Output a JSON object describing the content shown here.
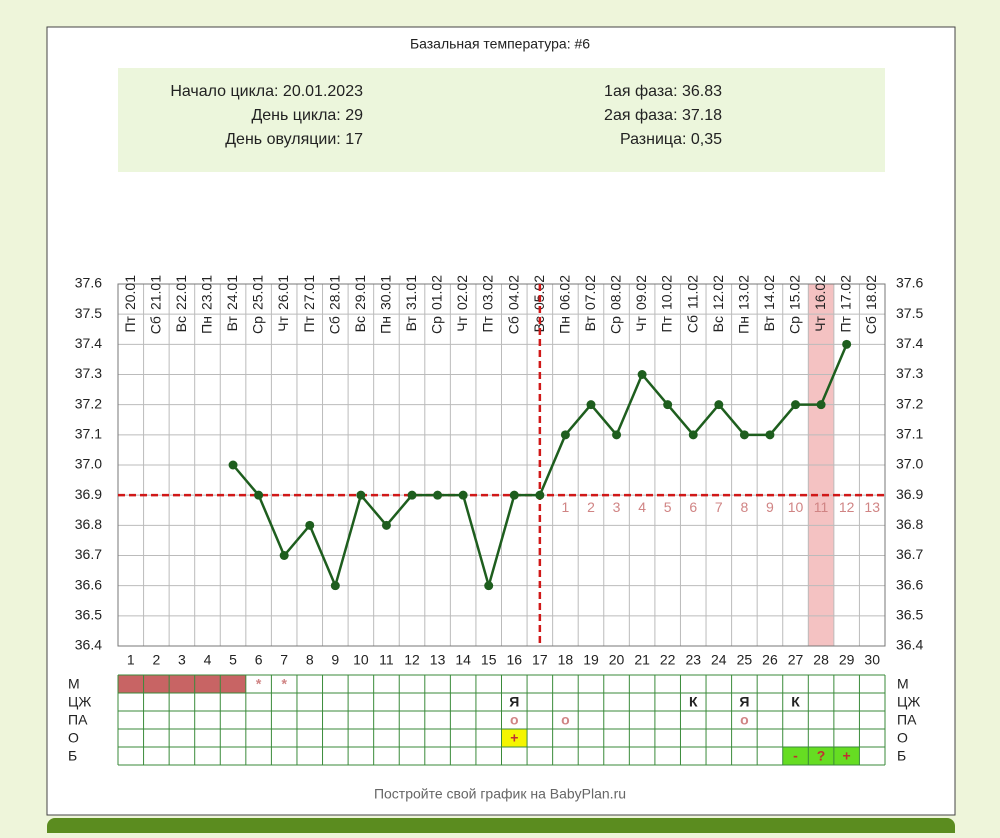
{
  "chart_data": {
    "type": "line",
    "title": "Базальная температура: #6",
    "info_left": [
      "Начало цикла: 20.01.2023",
      "День цикла: 29",
      "День овуляции: 17"
    ],
    "info_right": [
      "1ая фаза: 36.83",
      "2ая фаза: 37.18",
      "Разница: 0,35"
    ],
    "x": [
      1,
      2,
      3,
      4,
      5,
      6,
      7,
      8,
      9,
      10,
      11,
      12,
      13,
      14,
      15,
      16,
      17,
      18,
      19,
      20,
      21,
      22,
      23,
      24,
      25,
      26,
      27,
      28,
      29,
      30
    ],
    "weekdays": [
      "Пт",
      "Сб",
      "Вс",
      "Пн",
      "Вт",
      "Ср",
      "Чт",
      "Пт",
      "Сб",
      "Вс",
      "Пн",
      "Вт",
      "Ср",
      "Чт",
      "Пт",
      "Сб",
      "Вс",
      "Пн",
      "Вт",
      "Ср",
      "Чт",
      "Пт",
      "Сб",
      "Вс",
      "Пн",
      "Вт",
      "Ср",
      "Чт",
      "Пт",
      "Сб"
    ],
    "dates": [
      "20.01",
      "21.01",
      "22.01",
      "23.01",
      "24.01",
      "25.01",
      "26.01",
      "27.01",
      "28.01",
      "29.01",
      "30.01",
      "31.01",
      "01.02",
      "02.02",
      "03.02",
      "04.02",
      "05.02",
      "06.02",
      "07.02",
      "08.02",
      "09.02",
      "10.02",
      "11.02",
      "12.02",
      "13.02",
      "14.02",
      "15.02",
      "16.02",
      "17.02",
      "18.02"
    ],
    "series": [
      {
        "name": "Температура",
        "color": "#1e5e1e",
        "values": [
          null,
          null,
          null,
          null,
          37.0,
          36.9,
          36.7,
          36.8,
          36.6,
          36.9,
          36.8,
          36.9,
          36.9,
          36.9,
          36.6,
          36.9,
          36.9,
          37.1,
          37.2,
          37.1,
          37.3,
          37.2,
          37.1,
          37.2,
          37.1,
          37.1,
          37.2,
          37.2,
          37.4,
          null
        ]
      }
    ],
    "ylim": [
      36.4,
      37.6
    ],
    "yticks": [
      36.4,
      36.5,
      36.6,
      36.7,
      36.8,
      {
        "value": 36.9,
        "label": "36.9"
      },
      {
        "value": 37.0,
        "label": "37.0"
      },
      37.1,
      37.2,
      37.3,
      37.4,
      37.5,
      37.6
    ],
    "coverline": 36.9,
    "ovulation_day": 17,
    "phase_labels": [
      1,
      2,
      3,
      4,
      5,
      6,
      7,
      8,
      9,
      10,
      11,
      12,
      13
    ],
    "highlight_day": 28,
    "highlight_color": "#f4c2c2",
    "grid": true,
    "rows": [
      {
        "label": "М",
        "fills": [
          {
            "day": 1,
            "color": "#c86464"
          },
          {
            "day": 2,
            "color": "#c86464"
          },
          {
            "day": 3,
            "color": "#c86464"
          },
          {
            "day": 4,
            "color": "#c86464"
          },
          {
            "day": 5,
            "color": "#c86464"
          }
        ],
        "marks": [
          {
            "day": 6,
            "text": "*"
          },
          {
            "day": 7,
            "text": "*"
          }
        ]
      },
      {
        "label": "ЦЖ",
        "fills": [],
        "marks": [
          {
            "day": 16,
            "text": "Я"
          },
          {
            "day": 23,
            "text": "К"
          },
          {
            "day": 25,
            "text": "Я"
          },
          {
            "day": 27,
            "text": "К"
          }
        ]
      },
      {
        "label": "ПА",
        "fills": [],
        "marks": [
          {
            "day": 16,
            "text": "o"
          },
          {
            "day": 18,
            "text": "o"
          },
          {
            "day": 25,
            "text": "o"
          }
        ]
      },
      {
        "label": "О",
        "fills": [
          {
            "day": 16,
            "color": "#f5f500"
          }
        ],
        "marks": [
          {
            "day": 16,
            "text": "+"
          }
        ]
      },
      {
        "label": "Б",
        "fills": [
          {
            "day": 27,
            "color": "#66dd22"
          },
          {
            "day": 28,
            "color": "#66dd22"
          },
          {
            "day": 29,
            "color": "#66dd22"
          }
        ],
        "marks": [
          {
            "day": 27,
            "text": "-"
          },
          {
            "day": 28,
            "text": "?"
          },
          {
            "day": 29,
            "text": "+"
          }
        ]
      }
    ],
    "footer": "Постройте свой график на BabyPlan.ru"
  }
}
